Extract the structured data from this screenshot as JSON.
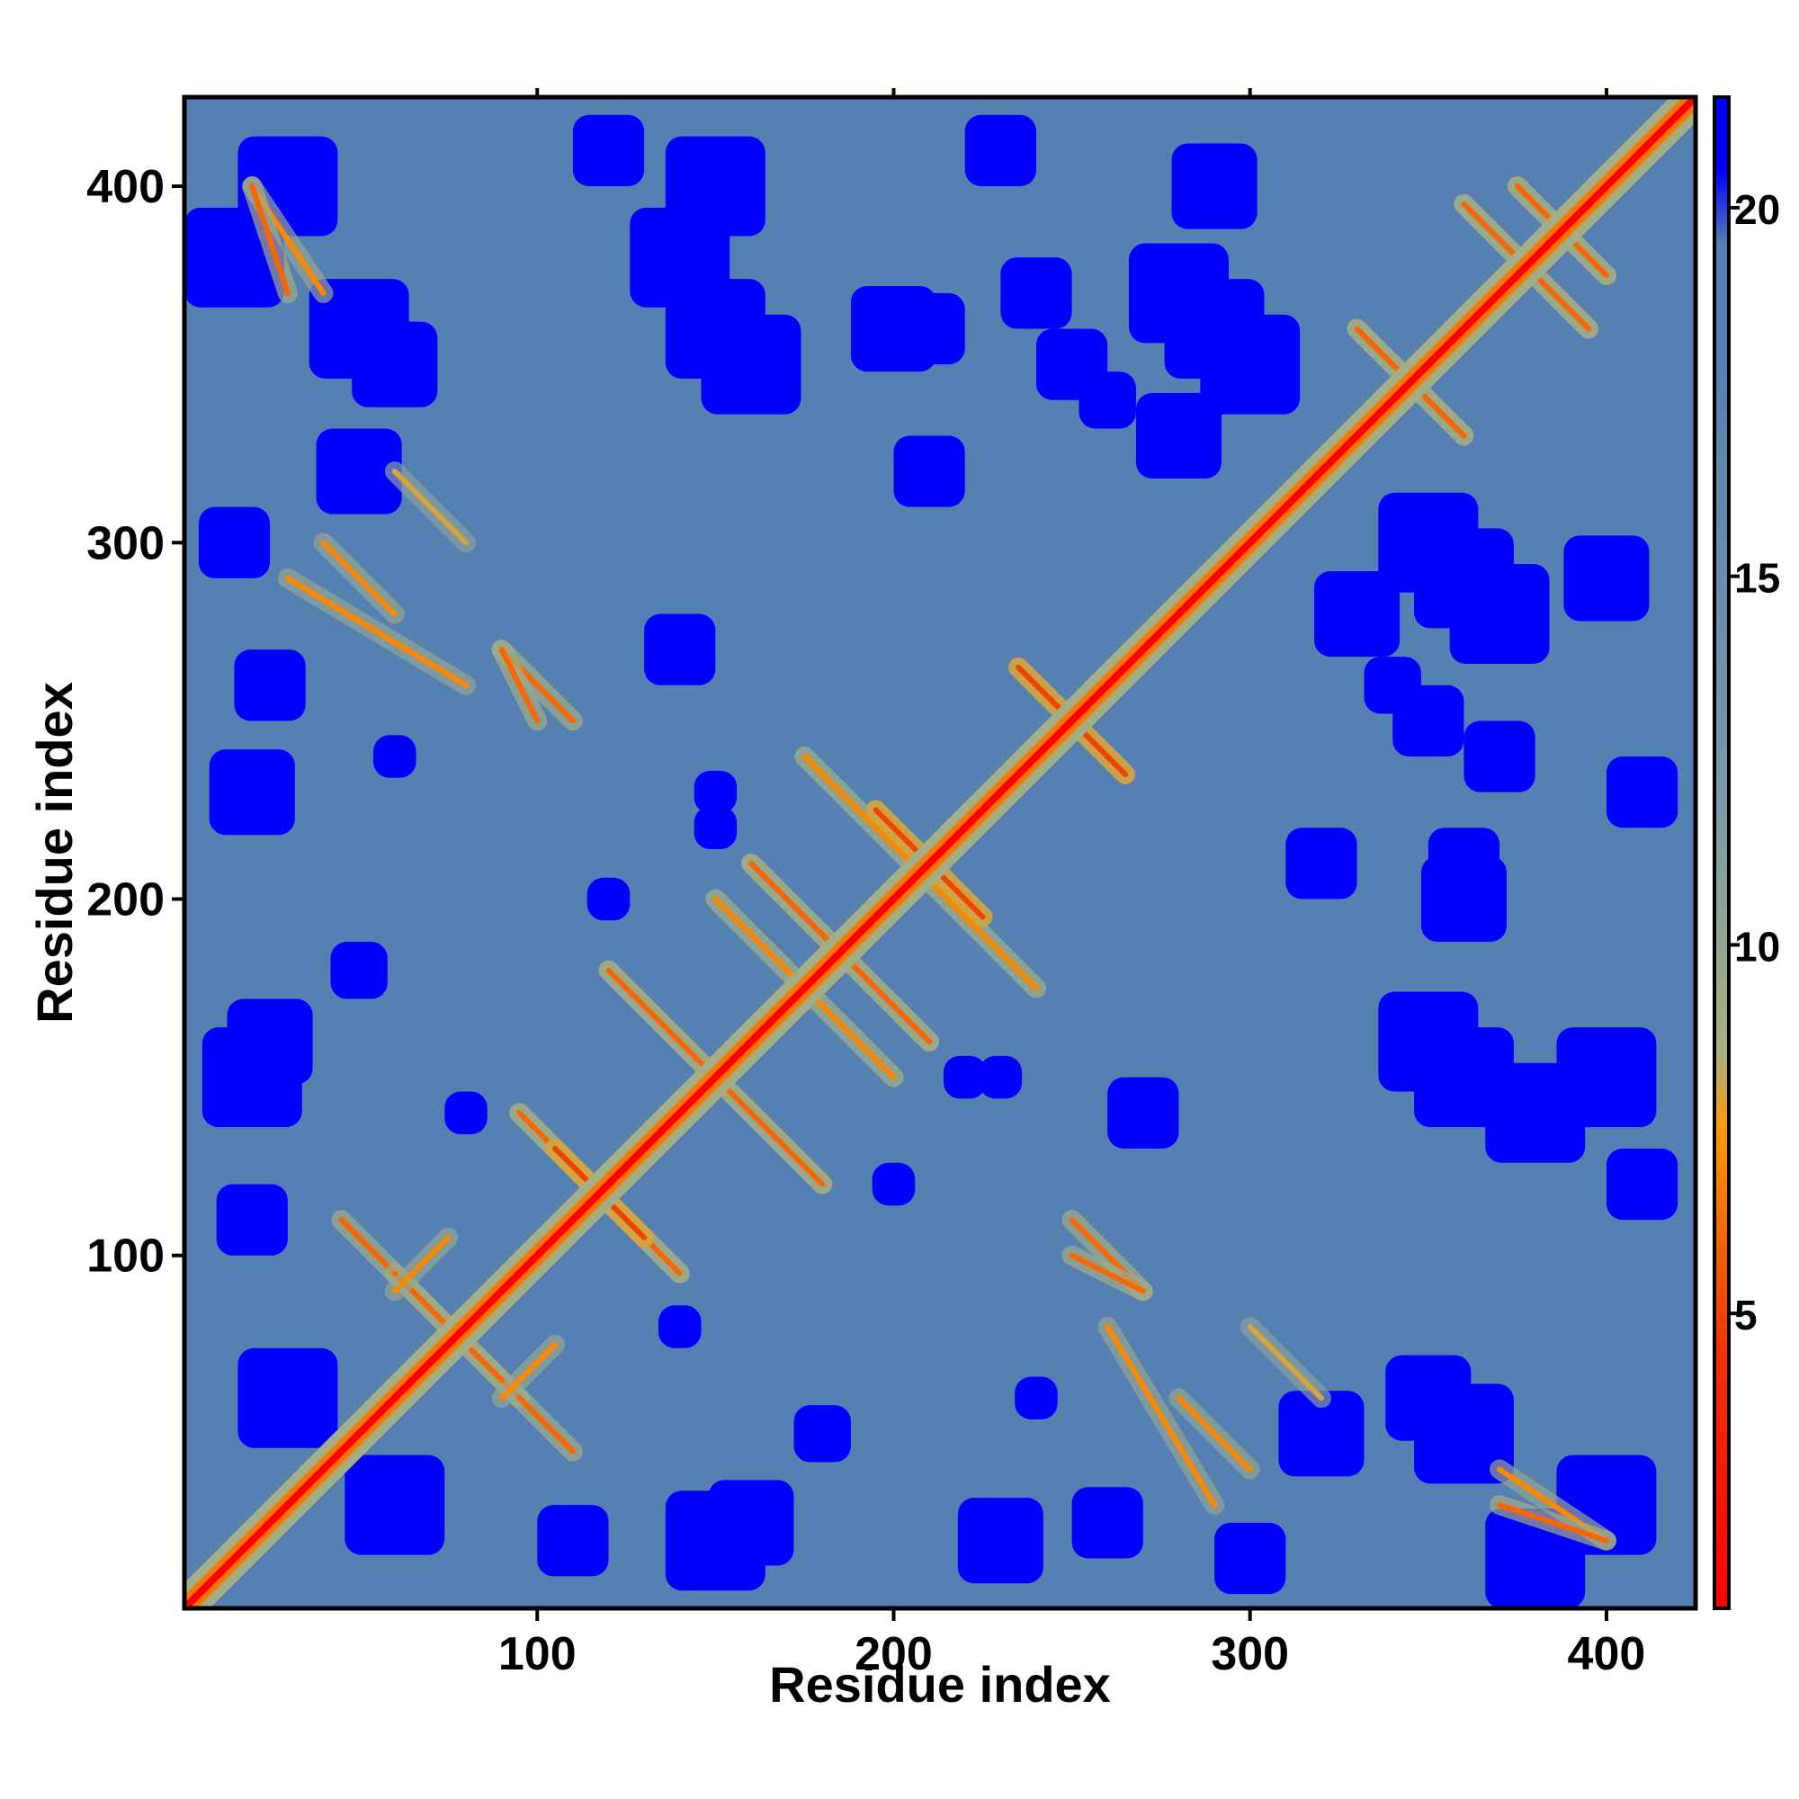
{
  "chart_data": {
    "type": "heatmap",
    "title": "",
    "xlabel": "Residue index",
    "ylabel": "Residue index",
    "xlim": [
      1,
      425
    ],
    "ylim": [
      1,
      425
    ],
    "x_ticks": [
      100,
      200,
      300,
      400
    ],
    "y_ticks": [
      100,
      200,
      300,
      400
    ],
    "colorbar": {
      "ticks": [
        5,
        10,
        15,
        20
      ],
      "range": [
        1,
        21.5
      ],
      "stops": [
        {
          "value": 1,
          "color": "#ff0000"
        },
        {
          "value": 4.5,
          "color": "#ee3300"
        },
        {
          "value": 7.5,
          "color": "#ff9900"
        },
        {
          "value": 8.5,
          "color": "#aab080"
        },
        {
          "value": 12,
          "color": "#7a9aa8"
        },
        {
          "value": 18,
          "color": "#5580b2"
        },
        {
          "value": 19.5,
          "color": "#5580b2"
        },
        {
          "value": 20.5,
          "color": "#0000ff"
        },
        {
          "value": 21.5,
          "color": "#0000ff"
        }
      ]
    },
    "n_residues": 425,
    "distance_saturation": 20.5,
    "values_note_omit": null,
    "contact_segments": [
      {
        "from": [
          45,
          110
        ],
        "to": [
          95,
          60
        ],
        "distance": 6
      },
      {
        "from": [
          60,
          90
        ],
        "to": [
          75,
          105
        ],
        "distance": 7
      },
      {
        "from": [
          95,
          140
        ],
        "to": [
          140,
          95
        ],
        "distance": 6
      },
      {
        "from": [
          105,
          130
        ],
        "to": [
          130,
          105
        ],
        "distance": 5
      },
      {
        "from": [
          120,
          180
        ],
        "to": [
          180,
          120
        ],
        "distance": 6
      },
      {
        "from": [
          150,
          200
        ],
        "to": [
          200,
          150
        ],
        "distance": 7
      },
      {
        "from": [
          160,
          210
        ],
        "to": [
          210,
          160
        ],
        "distance": 6
      },
      {
        "from": [
          175,
          240
        ],
        "to": [
          240,
          175
        ],
        "distance": 7
      },
      {
        "from": [
          195,
          225
        ],
        "to": [
          225,
          195
        ],
        "distance": 5
      },
      {
        "from": [
          235,
          265
        ],
        "to": [
          265,
          235
        ],
        "distance": 5
      },
      {
        "from": [
          330,
          360
        ],
        "to": [
          360,
          330
        ],
        "distance": 6
      },
      {
        "from": [
          360,
          395
        ],
        "to": [
          395,
          360
        ],
        "distance": 6
      },
      {
        "from": [
          375,
          400
        ],
        "to": [
          400,
          375
        ],
        "distance": 6
      },
      {
        "from": [
          20,
          400
        ],
        "to": [
          40,
          370
        ],
        "distance": 7
      },
      {
        "from": [
          30,
          290
        ],
        "to": [
          80,
          260
        ],
        "distance": 7
      },
      {
        "from": [
          90,
          270
        ],
        "to": [
          110,
          250
        ],
        "distance": 6
      },
      {
        "from": [
          370,
          30
        ],
        "to": [
          400,
          20
        ],
        "distance": 6
      },
      {
        "from": [
          250,
          100
        ],
        "to": [
          270,
          90
        ],
        "distance": 6
      },
      {
        "from": [
          280,
          60
        ],
        "to": [
          300,
          40
        ],
        "distance": 7
      },
      {
        "from": [
          300,
          80
        ],
        "to": [
          320,
          60
        ],
        "distance": 8
      }
    ],
    "far_patches": [
      {
        "center": [
          15,
          380
        ],
        "radius": 14
      },
      {
        "center": [
          15,
          300
        ],
        "radius": 10
      },
      {
        "center": [
          20,
          150
        ],
        "radius": 14
      },
      {
        "center": [
          30,
          60
        ],
        "radius": 14
      },
      {
        "center": [
          60,
          350
        ],
        "radius": 12
      },
      {
        "center": [
          140,
          380
        ],
        "radius": 14
      },
      {
        "center": [
          160,
          350
        ],
        "radius": 14
      },
      {
        "center": [
          200,
          360
        ],
        "radius": 12
      },
      {
        "center": [
          250,
          350
        ],
        "radius": 10
      },
      {
        "center": [
          280,
          370
        ],
        "radius": 14
      },
      {
        "center": [
          300,
          350
        ],
        "radius": 14
      },
      {
        "center": [
          260,
          340
        ],
        "radius": 8
      },
      {
        "center": [
          110,
          20
        ],
        "radius": 10
      },
      {
        "center": [
          160,
          25
        ],
        "radius": 12
      },
      {
        "center": [
          230,
          20
        ],
        "radius": 12
      },
      {
        "center": [
          260,
          25
        ],
        "radius": 10
      },
      {
        "center": [
          320,
          50
        ],
        "radius": 12
      },
      {
        "center": [
          360,
          50
        ],
        "radius": 14
      },
      {
        "center": [
          400,
          30
        ],
        "radius": 14
      },
      {
        "center": [
          360,
          150
        ],
        "radius": 14
      },
      {
        "center": [
          400,
          150
        ],
        "radius": 14
      },
      {
        "center": [
          410,
          120
        ],
        "radius": 10
      },
      {
        "center": [
          330,
          280
        ],
        "radius": 12
      },
      {
        "center": [
          360,
          290
        ],
        "radius": 14
      },
      {
        "center": [
          400,
          290
        ],
        "radius": 12
      },
      {
        "center": [
          410,
          230
        ],
        "radius": 10
      },
      {
        "center": [
          320,
          210
        ],
        "radius": 10
      },
      {
        "center": [
          360,
          210
        ],
        "radius": 10
      },
      {
        "center": [
          370,
          240
        ],
        "radius": 10
      },
      {
        "center": [
          270,
          140
        ],
        "radius": 10
      },
      {
        "center": [
          220,
          150
        ],
        "radius": 6
      },
      {
        "center": [
          120,
          200
        ],
        "radius": 6
      },
      {
        "center": [
          150,
          230
        ],
        "radius": 6
      },
      {
        "center": [
          60,
          240
        ],
        "radius": 6
      },
      {
        "center": [
          80,
          140
        ],
        "radius": 6
      },
      {
        "center": [
          50,
          180
        ],
        "radius": 8
      }
    ]
  }
}
